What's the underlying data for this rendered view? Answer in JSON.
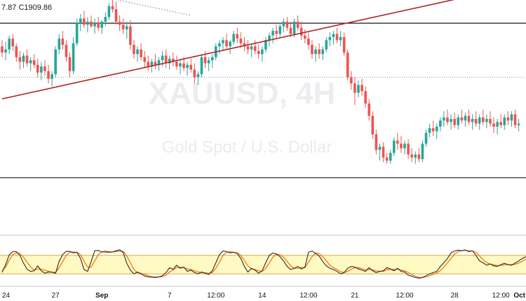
{
  "header": {
    "ohlc_text": "7.87  C1909.86"
  },
  "watermark": {
    "symbol": "XAUUSD, 4H",
    "description": "Gold Spot / U.S. Dollar"
  },
  "colors": {
    "up": "#26a69a",
    "down": "#ef5350",
    "trendline": "#b22222",
    "hline": "#131722",
    "dotted": "#9598a1",
    "stoch_k": "#2b2b2b",
    "stoch_d": "#ff6d00",
    "stoch_band": "#fff9c4",
    "stoch_band_border": "#c9a227"
  },
  "chart_data": {
    "type": "candlestick",
    "symbol": "XAUUSD",
    "timeframe": "4H",
    "last_close": 1909.86,
    "ylim": [
      1845,
      1990
    ],
    "x_ticks": [
      {
        "i": 0,
        "label": "24"
      },
      {
        "i": 15,
        "label": "27"
      },
      {
        "i": 28,
        "label": "Sep",
        "bold": true
      },
      {
        "i": 47,
        "label": "7"
      },
      {
        "i": 60,
        "label": "12:00"
      },
      {
        "i": 73,
        "label": "14"
      },
      {
        "i": 86,
        "label": "12:00"
      },
      {
        "i": 99,
        "label": "21"
      },
      {
        "i": 113,
        "label": "12:00"
      },
      {
        "i": 127,
        "label": "28"
      },
      {
        "i": 140,
        "label": "12:00"
      },
      {
        "i": 147,
        "label": "Oct",
        "bold": true
      }
    ],
    "horizontal_levels": [
      1975,
      1875
    ],
    "dotted_level": 1940,
    "trendline": {
      "from": [
        0,
        1926
      ],
      "to": [
        148,
        2001
      ]
    },
    "dotted_trendline": {
      "from": [
        10,
        2001
      ],
      "to": [
        53,
        1980
      ]
    },
    "candles": [
      [
        1960,
        1964,
        1953,
        1956
      ],
      [
        1956,
        1963,
        1951,
        1958
      ],
      [
        1958,
        1967,
        1955,
        1965
      ],
      [
        1965,
        1968,
        1957,
        1960
      ],
      [
        1960,
        1962,
        1950,
        1953
      ],
      [
        1953,
        1957,
        1945,
        1950
      ],
      [
        1950,
        1956,
        1946,
        1954
      ],
      [
        1954,
        1958,
        1947,
        1949
      ],
      [
        1949,
        1953,
        1944,
        1951
      ],
      [
        1951,
        1955,
        1946,
        1948
      ],
      [
        1948,
        1952,
        1940,
        1943
      ],
      [
        1943,
        1950,
        1938,
        1947
      ],
      [
        1947,
        1951,
        1941,
        1944
      ],
      [
        1944,
        1948,
        1936,
        1939
      ],
      [
        1939,
        1944,
        1934,
        1942
      ],
      [
        1942,
        1960,
        1940,
        1958
      ],
      [
        1958,
        1968,
        1955,
        1965
      ],
      [
        1965,
        1970,
        1958,
        1961
      ],
      [
        1961,
        1964,
        1950,
        1953
      ],
      [
        1953,
        1956,
        1940,
        1944
      ],
      [
        1944,
        1966,
        1942,
        1962
      ],
      [
        1962,
        1978,
        1960,
        1975
      ],
      [
        1975,
        1981,
        1970,
        1978
      ],
      [
        1978,
        1983,
        1972,
        1974
      ],
      [
        1974,
        1979,
        1969,
        1976
      ],
      [
        1976,
        1980,
        1972,
        1973
      ],
      [
        1973,
        1978,
        1968,
        1975
      ],
      [
        1975,
        1979,
        1970,
        1972
      ],
      [
        1972,
        1977,
        1968,
        1976
      ],
      [
        1976,
        1982,
        1973,
        1979
      ],
      [
        1979,
        1988,
        1977,
        1986
      ],
      [
        1986,
        1992,
        1982,
        1984
      ],
      [
        1984,
        1989,
        1974,
        1976
      ],
      [
        1976,
        1980,
        1970,
        1974
      ],
      [
        1974,
        1978,
        1968,
        1971
      ],
      [
        1971,
        1976,
        1965,
        1973
      ],
      [
        1973,
        1977,
        1958,
        1961
      ],
      [
        1961,
        1964,
        1952,
        1955
      ],
      [
        1955,
        1960,
        1950,
        1958
      ],
      [
        1958,
        1962,
        1951,
        1953
      ],
      [
        1953,
        1957,
        1946,
        1950
      ],
      [
        1950,
        1954,
        1944,
        1947
      ],
      [
        1947,
        1952,
        1943,
        1950
      ],
      [
        1950,
        1955,
        1945,
        1948
      ],
      [
        1948,
        1953,
        1944,
        1951
      ],
      [
        1951,
        1957,
        1947,
        1954
      ],
      [
        1954,
        1958,
        1946,
        1949
      ],
      [
        1949,
        1954,
        1945,
        1952
      ],
      [
        1952,
        1956,
        1947,
        1950
      ],
      [
        1950,
        1954,
        1945,
        1947
      ],
      [
        1947,
        1951,
        1942,
        1949
      ],
      [
        1949,
        1953,
        1944,
        1946
      ],
      [
        1946,
        1950,
        1941,
        1948
      ],
      [
        1948,
        1952,
        1943,
        1945
      ],
      [
        1945,
        1949,
        1936,
        1940
      ],
      [
        1940,
        1944,
        1935,
        1942
      ],
      [
        1942,
        1955,
        1940,
        1953
      ],
      [
        1953,
        1957,
        1946,
        1949
      ],
      [
        1949,
        1953,
        1944,
        1951
      ],
      [
        1951,
        1955,
        1946,
        1953
      ],
      [
        1953,
        1962,
        1951,
        1960
      ],
      [
        1960,
        1964,
        1955,
        1962
      ],
      [
        1962,
        1966,
        1957,
        1964
      ],
      [
        1964,
        1968,
        1958,
        1960
      ],
      [
        1960,
        1964,
        1955,
        1963
      ],
      [
        1963,
        1970,
        1961,
        1968
      ],
      [
        1968,
        1972,
        1962,
        1965
      ],
      [
        1965,
        1969,
        1959,
        1962
      ],
      [
        1962,
        1966,
        1957,
        1960
      ],
      [
        1960,
        1964,
        1955,
        1958
      ],
      [
        1958,
        1962,
        1953,
        1960
      ],
      [
        1960,
        1964,
        1955,
        1957
      ],
      [
        1957,
        1961,
        1952,
        1955
      ],
      [
        1955,
        1960,
        1950,
        1958
      ],
      [
        1958,
        1966,
        1956,
        1964
      ],
      [
        1964,
        1969,
        1960,
        1967
      ],
      [
        1967,
        1972,
        1962,
        1970
      ],
      [
        1970,
        1974,
        1965,
        1968
      ],
      [
        1968,
        1975,
        1966,
        1973
      ],
      [
        1973,
        1978,
        1969,
        1976
      ],
      [
        1976,
        1979,
        1970,
        1972
      ],
      [
        1972,
        1976,
        1966,
        1968
      ],
      [
        1968,
        1978,
        1966,
        1976
      ],
      [
        1976,
        1980,
        1970,
        1972
      ],
      [
        1972,
        1976,
        1964,
        1967
      ],
      [
        1967,
        1971,
        1962,
        1965
      ],
      [
        1965,
        1969,
        1958,
        1961
      ],
      [
        1961,
        1964,
        1952,
        1955
      ],
      [
        1955,
        1960,
        1950,
        1958
      ],
      [
        1958,
        1962,
        1952,
        1955
      ],
      [
        1955,
        1960,
        1951,
        1958
      ],
      [
        1958,
        1966,
        1956,
        1964
      ],
      [
        1964,
        1969,
        1960,
        1966
      ],
      [
        1966,
        1970,
        1961,
        1968
      ],
      [
        1968,
        1972,
        1962,
        1964
      ],
      [
        1964,
        1970,
        1960,
        1966
      ],
      [
        1966,
        1969,
        1954,
        1956
      ],
      [
        1956,
        1958,
        1938,
        1940
      ],
      [
        1940,
        1944,
        1932,
        1936
      ],
      [
        1936,
        1940,
        1922,
        1930
      ],
      [
        1930,
        1938,
        1927,
        1935
      ],
      [
        1935,
        1939,
        1928,
        1931
      ],
      [
        1931,
        1934,
        1920,
        1923
      ],
      [
        1923,
        1926,
        1912,
        1915
      ],
      [
        1915,
        1918,
        1900,
        1903
      ],
      [
        1903,
        1906,
        1890,
        1893
      ],
      [
        1893,
        1897,
        1886,
        1895
      ],
      [
        1895,
        1898,
        1885,
        1888
      ],
      [
        1888,
        1891,
        1884,
        1886
      ],
      [
        1886,
        1893,
        1884,
        1891
      ],
      [
        1891,
        1901,
        1889,
        1899
      ],
      [
        1899,
        1904,
        1893,
        1897
      ],
      [
        1897,
        1902,
        1891,
        1894
      ],
      [
        1894,
        1899,
        1890,
        1897
      ],
      [
        1897,
        1900,
        1887,
        1890
      ],
      [
        1890,
        1894,
        1885,
        1888
      ],
      [
        1888,
        1892,
        1884,
        1890
      ],
      [
        1890,
        1894,
        1885,
        1887
      ],
      [
        1887,
        1899,
        1885,
        1897
      ],
      [
        1897,
        1906,
        1895,
        1904
      ],
      [
        1904,
        1910,
        1901,
        1907
      ],
      [
        1907,
        1912,
        1902,
        1905
      ],
      [
        1905,
        1910,
        1900,
        1908
      ],
      [
        1908,
        1914,
        1905,
        1912
      ],
      [
        1912,
        1918,
        1908,
        1914
      ],
      [
        1914,
        1919,
        1909,
        1911
      ],
      [
        1911,
        1916,
        1906,
        1913
      ],
      [
        1913,
        1917,
        1907,
        1909
      ],
      [
        1909,
        1916,
        1906,
        1914
      ],
      [
        1914,
        1919,
        1910,
        1912
      ],
      [
        1912,
        1917,
        1908,
        1915
      ],
      [
        1915,
        1919,
        1909,
        1911
      ],
      [
        1911,
        1916,
        1906,
        1913
      ],
      [
        1913,
        1918,
        1908,
        1910
      ],
      [
        1910,
        1916,
        1906,
        1914
      ],
      [
        1914,
        1919,
        1909,
        1911
      ],
      [
        1911,
        1916,
        1907,
        1913
      ],
      [
        1913,
        1918,
        1908,
        1910
      ],
      [
        1910,
        1914,
        1904,
        1908
      ],
      [
        1908,
        1913,
        1903,
        1911
      ],
      [
        1911,
        1916,
        1907,
        1909
      ],
      [
        1909,
        1916,
        1906,
        1914
      ],
      [
        1914,
        1918,
        1909,
        1912
      ],
      [
        1912,
        1918,
        1908,
        1916
      ],
      [
        1916,
        1919,
        1907,
        1909
      ],
      [
        1909,
        1913,
        1905,
        1910
      ]
    ],
    "stochastic": {
      "ylim": [
        0,
        100
      ],
      "overbought": 80,
      "oversold": 20,
      "k": [
        25,
        50,
        82,
        92,
        92,
        80,
        55,
        35,
        28,
        30,
        46,
        30,
        22,
        26,
        25,
        22,
        60,
        83,
        93,
        93,
        88,
        90,
        70,
        34,
        28,
        60,
        95,
        96,
        91,
        91,
        90,
        91,
        95,
        98,
        89,
        54,
        32,
        20,
        26,
        20,
        13,
        10,
        9,
        8,
        10,
        14,
        24,
        40,
        35,
        48,
        38,
        42,
        28,
        32,
        24,
        20,
        26,
        22,
        18,
        30,
        56,
        82,
        95,
        92,
        88,
        90,
        86,
        70,
        44,
        26,
        38,
        32,
        22,
        30,
        56,
        80,
        88,
        84,
        76,
        62,
        44,
        34,
        38,
        44,
        36,
        42,
        90,
        94,
        86,
        78,
        60,
        46,
        38,
        34,
        28,
        20,
        24,
        38,
        44,
        42,
        36,
        32,
        28,
        40,
        30,
        24,
        28,
        30,
        40,
        36,
        30,
        38,
        28,
        26,
        16,
        12,
        8,
        6,
        8,
        14,
        20,
        24,
        28,
        44,
        56,
        70,
        88,
        94,
        97,
        95,
        98,
        92,
        95,
        80,
        62,
        56,
        48,
        52,
        46,
        44,
        50,
        54,
        50,
        48,
        55,
        62,
        70,
        76
      ],
      "d": [
        30,
        42,
        64,
        82,
        88,
        86,
        74,
        58,
        42,
        32,
        36,
        35,
        32,
        28,
        26,
        24,
        40,
        60,
        80,
        90,
        91,
        90,
        82,
        62,
        42,
        42,
        62,
        82,
        92,
        94,
        92,
        91,
        92,
        94,
        93,
        78,
        56,
        34,
        24,
        22,
        18,
        14,
        11,
        10,
        10,
        11,
        16,
        26,
        33,
        40,
        42,
        40,
        36,
        34,
        30,
        26,
        24,
        23,
        22,
        24,
        38,
        58,
        80,
        90,
        92,
        90,
        88,
        80,
        64,
        46,
        36,
        34,
        30,
        28,
        38,
        56,
        74,
        84,
        82,
        74,
        60,
        46,
        38,
        38,
        40,
        40,
        58,
        76,
        88,
        86,
        76,
        62,
        48,
        40,
        34,
        27,
        24,
        28,
        35,
        40,
        40,
        37,
        33,
        34,
        33,
        30,
        28,
        28,
        33,
        35,
        34,
        35,
        32,
        30,
        24,
        18,
        12,
        9,
        8,
        10,
        14,
        18,
        23,
        30,
        42,
        56,
        70,
        84,
        92,
        95,
        96,
        95,
        94,
        90,
        78,
        66,
        56,
        52,
        49,
        47,
        47,
        49,
        50,
        50,
        51,
        55,
        61,
        68
      ]
    }
  }
}
